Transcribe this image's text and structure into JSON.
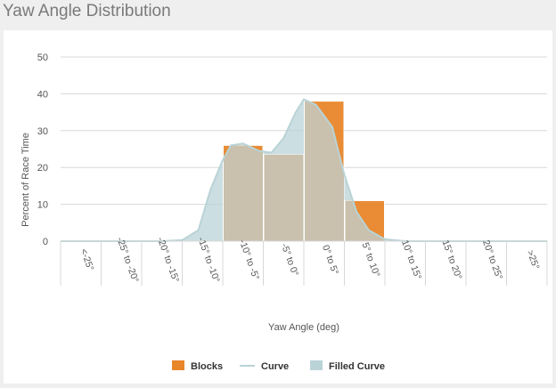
{
  "panel": {
    "title": "Yaw Angle Distribution"
  },
  "chart_data": {
    "type": "bar",
    "title": "",
    "xlabel": "Yaw Angle (deg)",
    "ylabel": "Percent of Race Time",
    "ylim": [
      0,
      50
    ],
    "yticks": [
      0,
      10,
      20,
      30,
      40,
      50
    ],
    "grid": true,
    "legend_position": "bottom",
    "categories": [
      "<-25°",
      "-25° to -20°",
      "-20° to -15°",
      "-15° to -10°",
      "-10° to -5°",
      "-5° to 0°",
      "0° to 5°",
      "5° to 10°",
      "10° to 15°",
      "15° to 20°",
      "20° to 25°",
      ">25°"
    ],
    "bins": [
      {
        "from": -30,
        "to": -25
      },
      {
        "from": -25,
        "to": -20
      },
      {
        "from": -20,
        "to": -15
      },
      {
        "from": -15,
        "to": -10
      },
      {
        "from": -10,
        "to": -5
      },
      {
        "from": -5,
        "to": 0
      },
      {
        "from": 0,
        "to": 5
      },
      {
        "from": 5,
        "to": 10
      },
      {
        "from": 10,
        "to": 15
      },
      {
        "from": 15,
        "to": 20
      },
      {
        "from": 20,
        "to": 25
      },
      {
        "from": 25,
        "to": 30
      }
    ],
    "series": [
      {
        "name": "Blocks",
        "kind": "bar",
        "color": "#e8862a",
        "values": [
          0,
          0,
          0,
          0,
          26,
          23.5,
          38,
          11,
          0,
          0,
          0,
          0
        ]
      },
      {
        "name": "Curve",
        "kind": "line",
        "color": "#b9d3d6",
        "x": [
          -30,
          -20,
          -17.5,
          -15,
          -13,
          -11.5,
          -10,
          -9,
          -7.5,
          -5.5,
          -4,
          -2.5,
          -1,
          0,
          1.5,
          3.5,
          5,
          6.5,
          8,
          10,
          12.5,
          15,
          20,
          30
        ],
        "y": [
          0,
          0,
          0,
          0.3,
          3,
          14,
          22,
          26,
          26.5,
          24.5,
          24,
          28,
          35,
          38.5,
          37,
          31,
          18,
          8,
          3,
          0.5,
          0,
          0,
          0,
          0
        ]
      },
      {
        "name": "Filled Curve",
        "kind": "area",
        "color": "#bad3d7"
      }
    ]
  }
}
